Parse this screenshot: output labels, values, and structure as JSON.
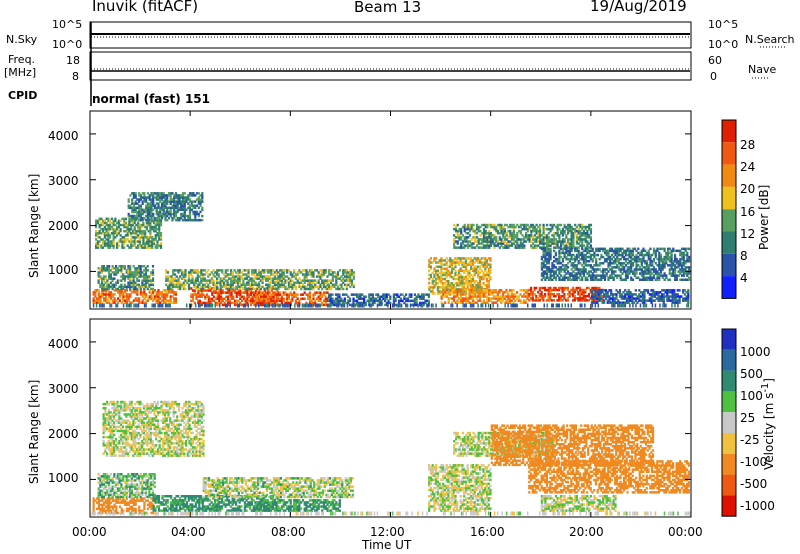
{
  "header": {
    "site": "Inuvik (fitACF)",
    "beam": "Beam 13",
    "date": "19/Aug/2019"
  },
  "strips": {
    "nsky_label": "N.Sky",
    "nsearch_label": "N.Search",
    "noise_ticks": [
      "10^5",
      "10^0"
    ],
    "freq_label_1": "Freq.",
    "freq_label_2": "[MHz]",
    "freq_ticks": [
      "18",
      "8"
    ],
    "nave_label": "Nave",
    "nave_ticks": [
      "60",
      "0"
    ],
    "cpid_label": "CPID",
    "cpid_value": "normal (fast) 151"
  },
  "axes": {
    "ylabel": "Slant Range [km]",
    "xlabel": "Time UT",
    "y_ticks": [
      "1000",
      "2000",
      "3000",
      "4000"
    ],
    "x_ticks": [
      "00:00",
      "04:00",
      "08:00",
      "12:00",
      "16:00",
      "20:00",
      "00:00"
    ]
  },
  "power_scale": {
    "label": "Power [dB]",
    "ticks": [
      "4",
      "8",
      "12",
      "16",
      "20",
      "24",
      "28"
    ],
    "colors": [
      "#1020ff",
      "#2a52a8",
      "#2f7f70",
      "#58a060",
      "#f0c020",
      "#f08a10",
      "#f05a10",
      "#e02000"
    ]
  },
  "velocity_scale": {
    "label": "Velocity [m s^-1]",
    "ticks": [
      "1000",
      "500",
      "100",
      "25",
      "-25",
      "-100",
      "-500",
      "-1000"
    ],
    "colors": [
      "#2030c0",
      "#2a6aa0",
      "#2e8a70",
      "#50c040",
      "#c8c8c8",
      "#f0c040",
      "#f08a20",
      "#f05a10",
      "#e01000"
    ]
  },
  "chart_data": {
    "type": "heatmap",
    "title": "Inuvik (fitACF)",
    "xlabel": "Time UT",
    "ylabel": "Slant Range [km]",
    "xlim_hours": [
      0,
      24
    ],
    "ylim_km": [
      180,
      4500
    ],
    "power_regions": [
      {
        "t0": 0.1,
        "t1": 3.4,
        "r0": 300,
        "r1": 600,
        "db": 24
      },
      {
        "t0": 0.3,
        "t1": 2.5,
        "r0": 600,
        "r1": 1100,
        "db": 12
      },
      {
        "t0": 0.2,
        "t1": 2.8,
        "r0": 1500,
        "r1": 2150,
        "db": 13
      },
      {
        "t0": 1.5,
        "t1": 4.5,
        "r0": 2100,
        "r1": 2700,
        "db": 10
      },
      {
        "t0": 4.0,
        "t1": 7.5,
        "r0": 250,
        "r1": 650,
        "db": 27
      },
      {
        "t0": 3.0,
        "t1": 10.5,
        "r0": 600,
        "r1": 1050,
        "db": 14
      },
      {
        "t0": 6.5,
        "t1": 9.5,
        "r0": 250,
        "r1": 550,
        "db": 26
      },
      {
        "t0": 9.5,
        "t1": 13.5,
        "r0": 250,
        "r1": 500,
        "db": 8
      },
      {
        "t0": 13.5,
        "t1": 16.0,
        "r0": 500,
        "r1": 1300,
        "db": 18
      },
      {
        "t0": 14.0,
        "t1": 17.5,
        "r0": 300,
        "r1": 600,
        "db": 22
      },
      {
        "t0": 14.5,
        "t1": 20.0,
        "r0": 1500,
        "r1": 2000,
        "db": 12
      },
      {
        "t0": 17.5,
        "t1": 20.5,
        "r0": 350,
        "r1": 650,
        "db": 28
      },
      {
        "t0": 18.0,
        "t1": 23.9,
        "r0": 800,
        "r1": 1500,
        "db": 9
      },
      {
        "t0": 20.0,
        "t1": 23.9,
        "r0": 300,
        "r1": 600,
        "db": 7
      }
    ],
    "velocity_regions": [
      {
        "t0": 0.1,
        "t1": 2.5,
        "r0": 250,
        "r1": 600,
        "v": -200
      },
      {
        "t0": 0.3,
        "t1": 2.6,
        "r0": 600,
        "r1": 1100,
        "v": 60
      },
      {
        "t0": 0.5,
        "t1": 4.5,
        "r0": 1500,
        "r1": 2700,
        "v": 0
      },
      {
        "t0": 2.5,
        "t1": 7.5,
        "r0": 300,
        "r1": 650,
        "v": 150
      },
      {
        "t0": 4.5,
        "t1": 10.5,
        "r0": 600,
        "r1": 1050,
        "v": 10
      },
      {
        "t0": 6.5,
        "t1": 10.0,
        "r0": 300,
        "r1": 550,
        "v": 130
      },
      {
        "t0": 13.5,
        "t1": 16.0,
        "r0": 300,
        "r1": 1300,
        "v": 0
      },
      {
        "t0": 14.5,
        "t1": 18.5,
        "r0": 1500,
        "r1": 2000,
        "v": 0
      },
      {
        "t0": 16.0,
        "t1": 22.5,
        "r0": 1300,
        "r1": 2200,
        "v": -400
      },
      {
        "t0": 17.5,
        "t1": 23.9,
        "r0": 700,
        "r1": 1400,
        "v": -250
      },
      {
        "t0": 18.0,
        "t1": 21.0,
        "r0": 300,
        "r1": 650,
        "v": 0
      }
    ]
  }
}
